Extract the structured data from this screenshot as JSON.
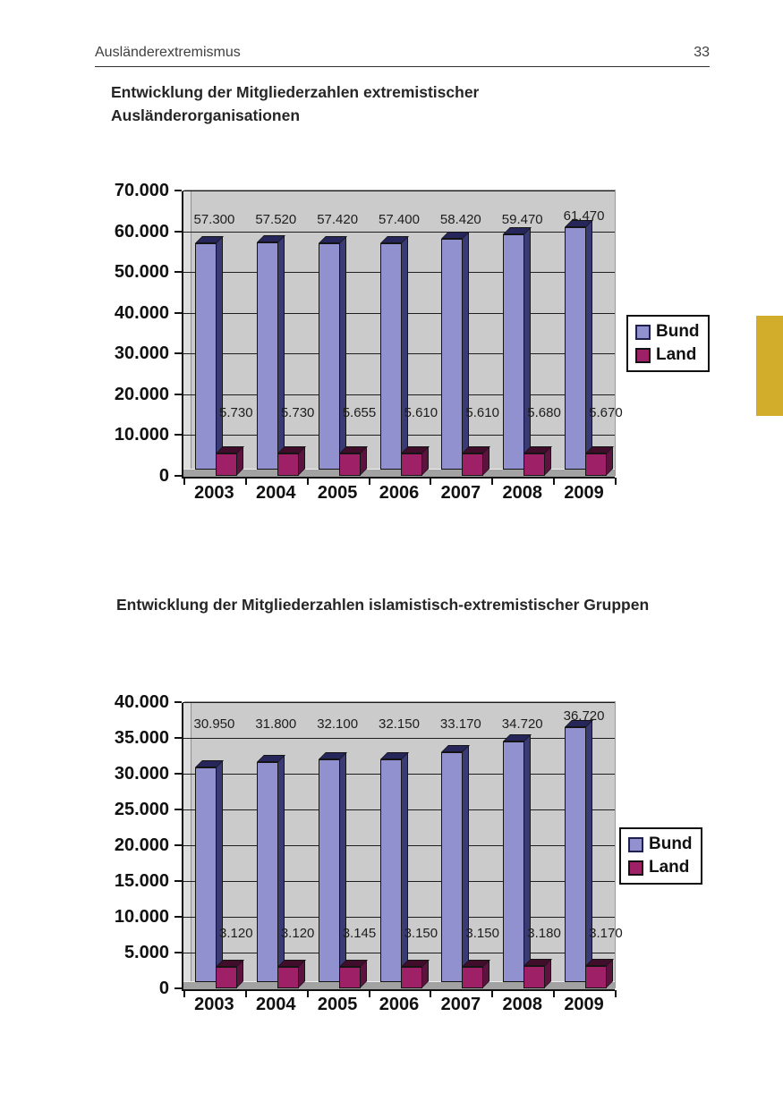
{
  "page": {
    "header_left": "Ausländerextremismus",
    "page_number": "33",
    "side_tab_color": "#d1ad2b"
  },
  "chart_data": [
    {
      "type": "bar",
      "title": "Entwicklung der Mitgliederzahlen extremistischer Ausländerorganisationen",
      "categories": [
        "2003",
        "2004",
        "2005",
        "2006",
        "2007",
        "2008",
        "2009"
      ],
      "series": [
        {
          "name": "Bund",
          "color": "#9191cf",
          "color_side": "#3a3a74",
          "color_top": "#26265a",
          "values": [
            57300,
            57520,
            57420,
            57400,
            58420,
            59470,
            61470
          ],
          "labels": [
            "57.300",
            "57.520",
            "57.420",
            "57.400",
            "58.420",
            "59.470",
            "61.470"
          ]
        },
        {
          "name": "Land",
          "color": "#9e2168",
          "color_side": "#5c1340",
          "color_top": "#400d2b",
          "values": [
            5730,
            5730,
            5655,
            5610,
            5610,
            5680,
            5670
          ],
          "labels": [
            "5.730",
            "5.730",
            "5.655",
            "5.610",
            "5.610",
            "5.680",
            "5.670"
          ]
        }
      ],
      "ylim": [
        0,
        70000
      ],
      "yticks": [
        "70.000",
        "60.000",
        "50.000",
        "40.000",
        "30.000",
        "20.000",
        "10.000",
        "0"
      ],
      "xlabel": "",
      "ylabel": "",
      "grid": true,
      "legend_position": "right",
      "plot_background": "#cbcbcb"
    },
    {
      "type": "bar",
      "title": "Entwicklung der Mitgliederzahlen islamistisch-extremistischer Gruppen",
      "categories": [
        "2003",
        "2004",
        "2005",
        "2006",
        "2007",
        "2008",
        "2009"
      ],
      "series": [
        {
          "name": "Bund",
          "color": "#9191cf",
          "color_side": "#3a3a74",
          "color_top": "#26265a",
          "values": [
            30950,
            31800,
            32100,
            32150,
            33170,
            34720,
            36720
          ],
          "labels": [
            "30.950",
            "31.800",
            "32.100",
            "32.150",
            "33.170",
            "34.720",
            "36.720"
          ]
        },
        {
          "name": "Land",
          "color": "#9e2168",
          "color_side": "#5c1340",
          "color_top": "#400d2b",
          "values": [
            3120,
            3120,
            3145,
            3150,
            3150,
            3180,
            3170
          ],
          "labels": [
            "3.120",
            "3.120",
            "3.145",
            "3.150",
            "3.150",
            "3.180",
            "3.170"
          ]
        }
      ],
      "ylim": [
        0,
        40000
      ],
      "yticks": [
        "40.000",
        "35.000",
        "30.000",
        "25.000",
        "20.000",
        "15.000",
        "10.000",
        "5.000",
        "0"
      ],
      "xlabel": "",
      "ylabel": "",
      "grid": true,
      "legend_position": "right",
      "plot_background": "#cbcbcb"
    }
  ]
}
